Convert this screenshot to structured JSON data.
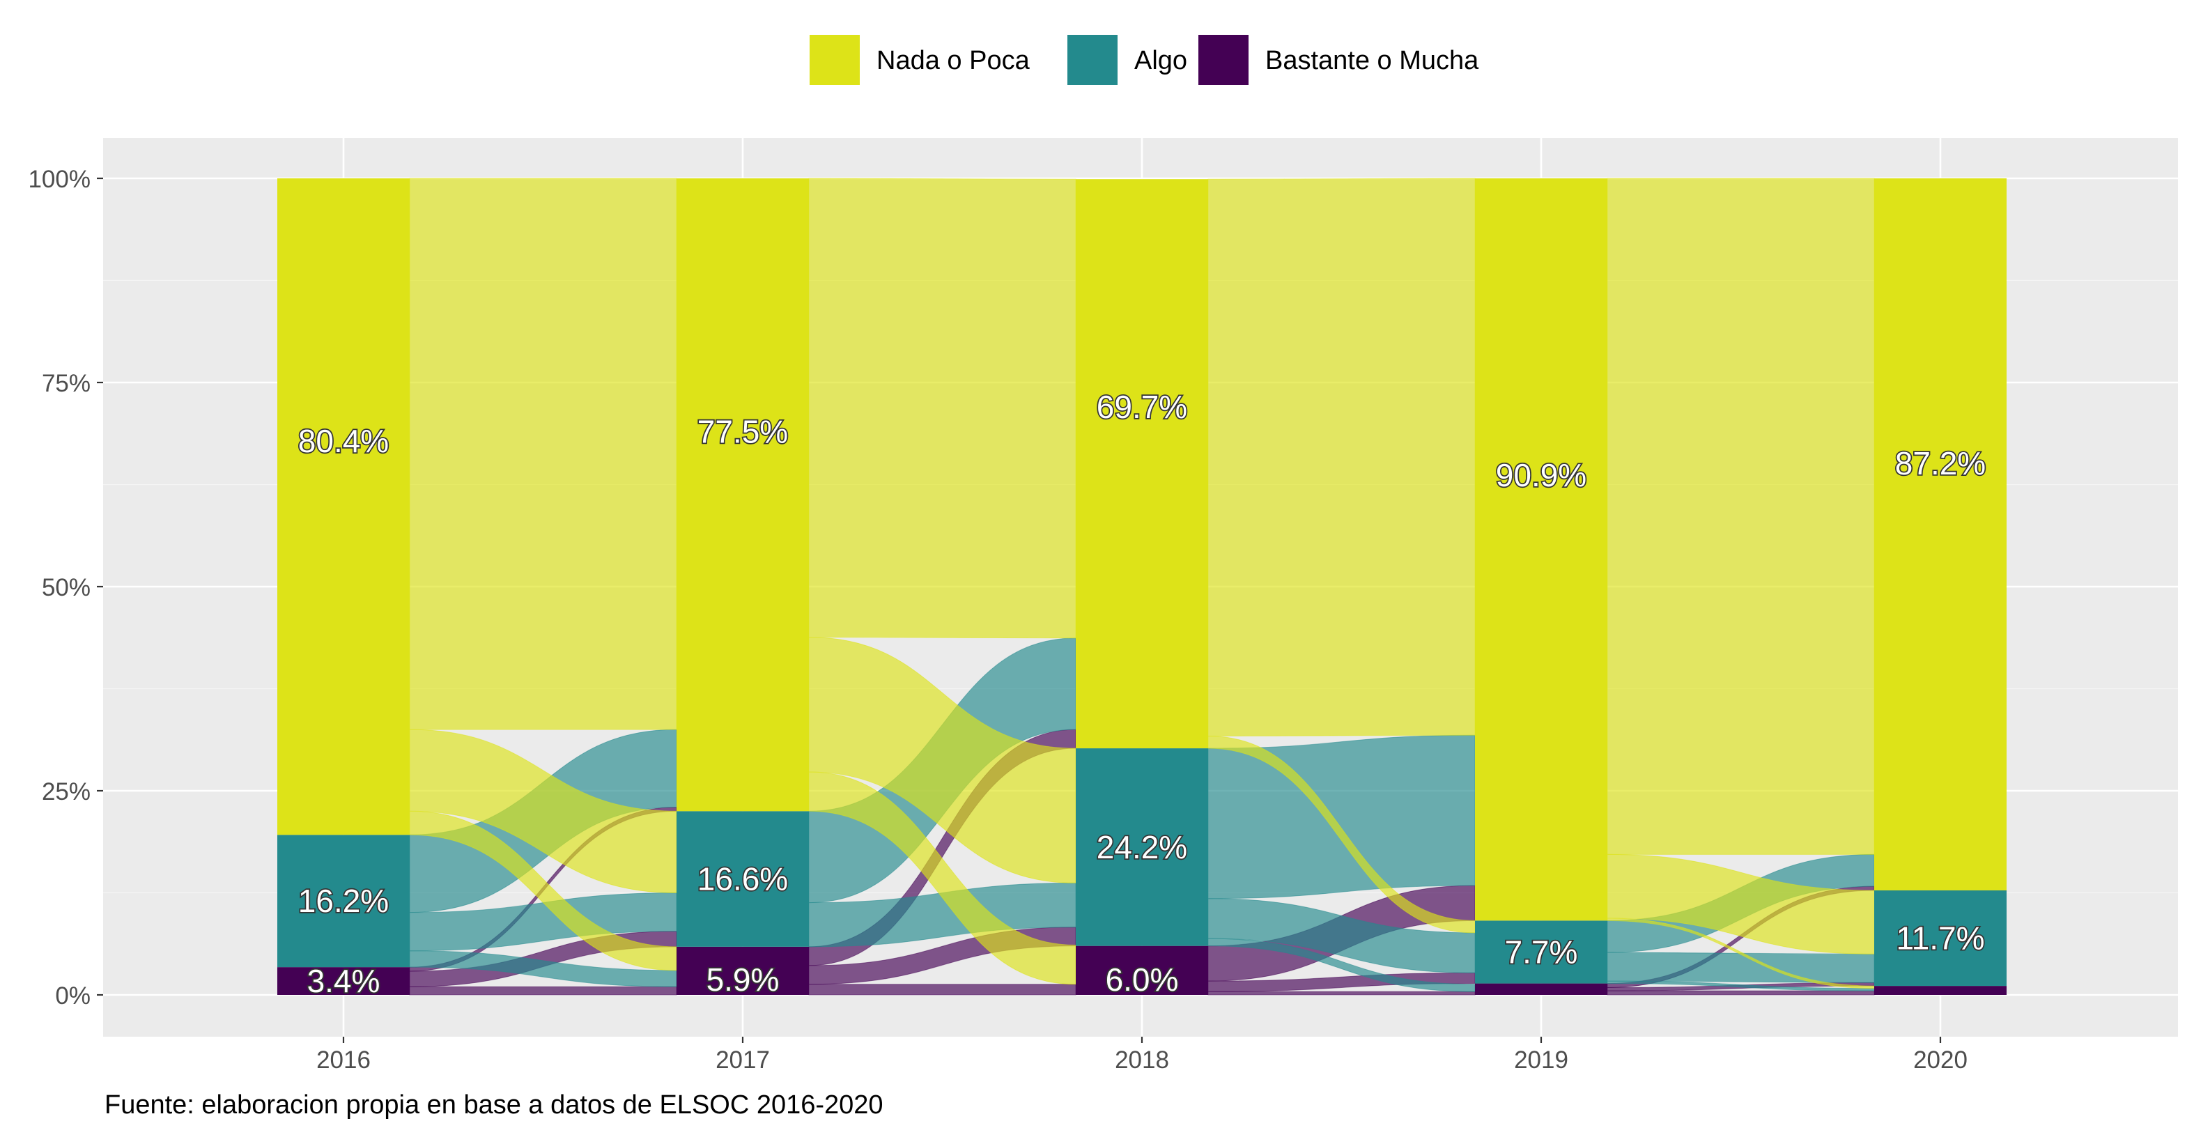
{
  "chart_data": {
    "type": "alluvial",
    "x": [
      "2016",
      "2017",
      "2018",
      "2019",
      "2020"
    ],
    "y_ticks": [
      "0%",
      "25%",
      "50%",
      "75%",
      "100%"
    ],
    "ylim": [
      0,
      100
    ],
    "legend_position": "top",
    "grid": true,
    "categories": [
      {
        "name": "Nada o Poca",
        "color": "#DDE318"
      },
      {
        "name": "Algo",
        "color": "#238A8D"
      },
      {
        "name": "Bastante o Mucha",
        "color": "#440154"
      }
    ],
    "series": [
      {
        "name": "Nada o Poca",
        "values": [
          80.4,
          77.5,
          69.7,
          90.9,
          87.2
        ]
      },
      {
        "name": "Algo",
        "values": [
          16.2,
          16.6,
          24.2,
          7.7,
          11.7
        ]
      },
      {
        "name": "Bastante o Mucha",
        "values": [
          3.4,
          5.9,
          6.0,
          1.4,
          1.1
        ]
      }
    ],
    "labels": [
      {
        "year": "2016",
        "category": "Nada o Poca",
        "text": "80.4%"
      },
      {
        "year": "2016",
        "category": "Algo",
        "text": "16.2%"
      },
      {
        "year": "2016",
        "category": "Bastante o Mucha",
        "text": "3.4%"
      },
      {
        "year": "2017",
        "category": "Nada o Poca",
        "text": "77.5%"
      },
      {
        "year": "2017",
        "category": "Algo",
        "text": "16.6%"
      },
      {
        "year": "2017",
        "category": "Bastante o Mucha",
        "text": "5.9%"
      },
      {
        "year": "2018",
        "category": "Nada o Poca",
        "text": "69.7%"
      },
      {
        "year": "2018",
        "category": "Algo",
        "text": "24.2%"
      },
      {
        "year": "2018",
        "category": "Bastante o Mucha",
        "text": "6.0%"
      },
      {
        "year": "2019",
        "category": "Nada o Poca",
        "text": "90.9%"
      },
      {
        "year": "2019",
        "category": "Algo",
        "text": "7.7%"
      },
      {
        "year": "2020",
        "category": "Nada o Poca",
        "text": "87.2%"
      },
      {
        "year": "2020",
        "category": "Algo",
        "text": "11.7%"
      }
    ],
    "flows": [
      {
        "from_year": "2016",
        "from": "Nada o Poca",
        "to": "Nada o Poca",
        "value": 67.5
      },
      {
        "from_year": "2016",
        "from": "Nada o Poca",
        "to": "Algo",
        "value": 10.0
      },
      {
        "from_year": "2016",
        "from": "Nada o Poca",
        "to": "Bastante o Mucha",
        "value": 2.9
      },
      {
        "from_year": "2016",
        "from": "Algo",
        "to": "Nada o Poca",
        "value": 9.5
      },
      {
        "from_year": "2016",
        "from": "Algo",
        "to": "Algo",
        "value": 4.7
      },
      {
        "from_year": "2016",
        "from": "Algo",
        "to": "Bastante o Mucha",
        "value": 2.0
      },
      {
        "from_year": "2016",
        "from": "Bastante o Mucha",
        "to": "Nada o Poca",
        "value": 0.5
      },
      {
        "from_year": "2016",
        "from": "Bastante o Mucha",
        "to": "Algo",
        "value": 1.9
      },
      {
        "from_year": "2016",
        "from": "Bastante o Mucha",
        "to": "Bastante o Mucha",
        "value": 1.0
      },
      {
        "from_year": "2017",
        "from": "Nada o Poca",
        "to": "Nada o Poca",
        "value": 56.2
      },
      {
        "from_year": "2017",
        "from": "Nada o Poca",
        "to": "Algo",
        "value": 16.5
      },
      {
        "from_year": "2017",
        "from": "Nada o Poca",
        "to": "Bastante o Mucha",
        "value": 4.8
      },
      {
        "from_year": "2017",
        "from": "Algo",
        "to": "Nada o Poca",
        "value": 11.2
      },
      {
        "from_year": "2017",
        "from": "Algo",
        "to": "Algo",
        "value": 5.4
      },
      {
        "from_year": "2017",
        "from": "Algo",
        "to": "Bastante o Mucha",
        "value": 0.0
      },
      {
        "from_year": "2017",
        "from": "Bastante o Mucha",
        "to": "Nada o Poca",
        "value": 2.3
      },
      {
        "from_year": "2017",
        "from": "Bastante o Mucha",
        "to": "Algo",
        "value": 2.3
      },
      {
        "from_year": "2017",
        "from": "Bastante o Mucha",
        "to": "Bastante o Mucha",
        "value": 1.3
      },
      {
        "from_year": "2018",
        "from": "Nada o Poca",
        "to": "Nada o Poca",
        "value": 68.2
      },
      {
        "from_year": "2018",
        "from": "Nada o Poca",
        "to": "Algo",
        "value": 1.5
      },
      {
        "from_year": "2018",
        "from": "Nada o Poca",
        "to": "Bastante o Mucha",
        "value": 0.0
      },
      {
        "from_year": "2018",
        "from": "Algo",
        "to": "Nada o Poca",
        "value": 18.4
      },
      {
        "from_year": "2018",
        "from": "Algo",
        "to": "Algo",
        "value": 4.9
      },
      {
        "from_year": "2018",
        "from": "Algo",
        "to": "Bastante o Mucha",
        "value": 0.9
      },
      {
        "from_year": "2018",
        "from": "Bastante o Mucha",
        "to": "Nada o Poca",
        "value": 4.3
      },
      {
        "from_year": "2018",
        "from": "Bastante o Mucha",
        "to": "Algo",
        "value": 1.3
      },
      {
        "from_year": "2018",
        "from": "Bastante o Mucha",
        "to": "Bastante o Mucha",
        "value": 0.4
      },
      {
        "from_year": "2019",
        "from": "Nada o Poca",
        "to": "Nada o Poca",
        "value": 82.8
      },
      {
        "from_year": "2019",
        "from": "Nada o Poca",
        "to": "Algo",
        "value": 7.8
      },
      {
        "from_year": "2019",
        "from": "Nada o Poca",
        "to": "Bastante o Mucha",
        "value": 0.3
      },
      {
        "from_year": "2019",
        "from": "Algo",
        "to": "Nada o Poca",
        "value": 3.9
      },
      {
        "from_year": "2019",
        "from": "Algo",
        "to": "Algo",
        "value": 3.5
      },
      {
        "from_year": "2019",
        "from": "Algo",
        "to": "Bastante o Mucha",
        "value": 0.3
      },
      {
        "from_year": "2019",
        "from": "Bastante o Mucha",
        "to": "Nada o Poca",
        "value": 0.5
      },
      {
        "from_year": "2019",
        "from": "Bastante o Mucha",
        "to": "Algo",
        "value": 0.4
      },
      {
        "from_year": "2019",
        "from": "Bastante o Mucha",
        "to": "Bastante o Mucha",
        "value": 0.5
      }
    ]
  },
  "caption": "Fuente: elaboracion propia en base a datos de ELSOC 2016-2020"
}
